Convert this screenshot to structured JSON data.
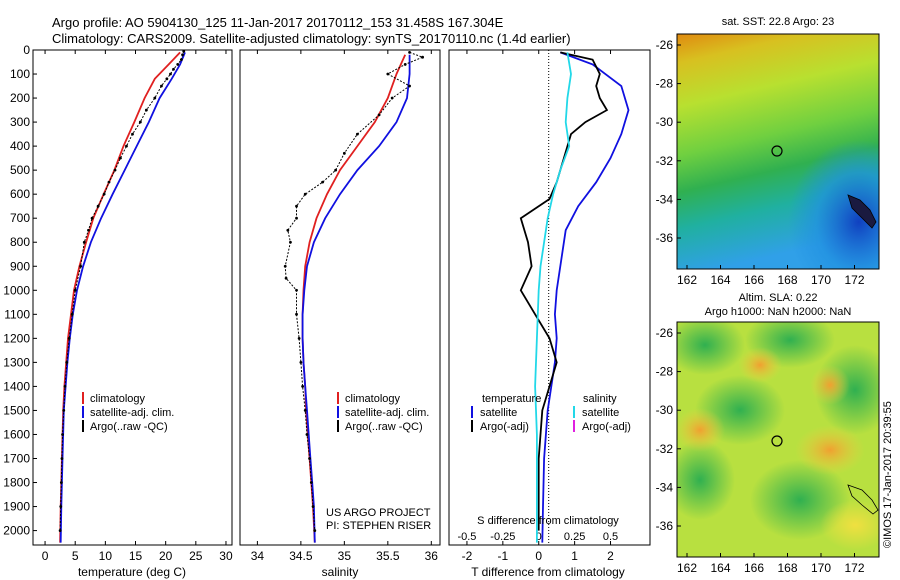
{
  "header": {
    "line1": "Argo profile: AO 5904130_125 11-Jan-2017 20170112_153 31.458S 167.304E",
    "line2": "Climatology: CARS2009. Satellite-adjusted climatology: synTS_20170110.nc (1.4d earlier)"
  },
  "colors": {
    "climatology": "#e02020",
    "satellite": "#1010e0",
    "argo": "#000000",
    "salinity_satellite": "#22d8e8",
    "salinity_argo": "#e020e0"
  },
  "chart_data": [
    {
      "id": "temperature",
      "type": "line",
      "xlabel": "temperature (deg C)",
      "xlim": [
        -2,
        31
      ],
      "ylim": [
        0,
        2060
      ],
      "y_reversed": true,
      "xticks": [
        0,
        5,
        10,
        15,
        20,
        25,
        30
      ],
      "yticks": [
        0,
        100,
        200,
        300,
        400,
        500,
        600,
        700,
        800,
        900,
        1000,
        1100,
        1200,
        1300,
        1400,
        1500,
        1600,
        1700,
        1800,
        1900,
        2000
      ],
      "legend": [
        "climatology",
        "satellite-adj. clim.",
        "Argo(..raw -QC)"
      ],
      "series": [
        {
          "name": "climatology",
          "color_key": "climatology",
          "points": [
            [
              22.4,
              10
            ],
            [
              20.5,
              60
            ],
            [
              18.2,
              120
            ],
            [
              16.5,
              200
            ],
            [
              14.8,
              300
            ],
            [
              13,
              400
            ],
            [
              11.5,
              500
            ],
            [
              9.7,
              600
            ],
            [
              8,
              700
            ],
            [
              6.8,
              800
            ],
            [
              5.7,
              900
            ],
            [
              4.8,
              1000
            ],
            [
              4.3,
              1100
            ],
            [
              3.8,
              1200
            ],
            [
              3.5,
              1300
            ],
            [
              3.2,
              1400
            ],
            [
              3,
              1500
            ],
            [
              2.8,
              1700
            ],
            [
              2.6,
              1900
            ],
            [
              2.5,
              2050
            ]
          ]
        },
        {
          "name": "satellite-adj. clim.",
          "color_key": "satellite",
          "points": [
            [
              23.2,
              10
            ],
            [
              22.4,
              60
            ],
            [
              21,
              120
            ],
            [
              19,
              200
            ],
            [
              17.2,
              300
            ],
            [
              15.2,
              400
            ],
            [
              13.2,
              500
            ],
            [
              11.2,
              600
            ],
            [
              9.3,
              700
            ],
            [
              7.6,
              800
            ],
            [
              6.3,
              900
            ],
            [
              5.3,
              1000
            ],
            [
              4.6,
              1100
            ],
            [
              4.1,
              1200
            ],
            [
              3.7,
              1300
            ],
            [
              3.4,
              1400
            ],
            [
              3.1,
              1500
            ],
            [
              2.9,
              1700
            ],
            [
              2.7,
              1900
            ],
            [
              2.6,
              2050
            ]
          ]
        },
        {
          "name": "Argo(..raw -QC)",
          "color_key": "argo",
          "style": "dots",
          "points": [
            [
              23,
              5
            ],
            [
              22.8,
              20
            ],
            [
              22.6,
              40
            ],
            [
              22,
              60
            ],
            [
              21.3,
              80
            ],
            [
              20.8,
              100
            ],
            [
              20.2,
              120
            ],
            [
              19.3,
              150
            ],
            [
              18.2,
              200
            ],
            [
              16.8,
              250
            ],
            [
              15.8,
              300
            ],
            [
              14.5,
              350
            ],
            [
              13.5,
              400
            ],
            [
              12.5,
              450
            ],
            [
              11.6,
              500
            ],
            [
              10.6,
              550
            ],
            [
              9.8,
              600
            ],
            [
              8.8,
              650
            ],
            [
              7.8,
              700
            ],
            [
              7.2,
              750
            ],
            [
              6.5,
              800
            ],
            [
              5.9,
              900
            ],
            [
              5,
              1000
            ],
            [
              4.5,
              1100
            ],
            [
              4,
              1200
            ],
            [
              3.6,
              1300
            ],
            [
              3.3,
              1400
            ],
            [
              3.1,
              1500
            ],
            [
              2.9,
              1600
            ],
            [
              2.8,
              1700
            ],
            [
              2.7,
              1800
            ],
            [
              2.6,
              1900
            ],
            [
              2.5,
              2000
            ]
          ]
        }
      ]
    },
    {
      "id": "salinity",
      "type": "line",
      "xlabel": "salinity",
      "xlim": [
        33.8,
        36.1
      ],
      "ylim": [
        0,
        2060
      ],
      "y_reversed": true,
      "xticks": [
        34,
        34.5,
        35,
        35.5,
        36
      ],
      "legend": [
        "climatology",
        "satellite-adj. clim.",
        "Argo(..raw -QC)"
      ],
      "series": [
        {
          "name": "climatology",
          "color_key": "climatology",
          "points": [
            [
              35.7,
              20
            ],
            [
              35.6,
              100
            ],
            [
              35.5,
              200
            ],
            [
              35.35,
              300
            ],
            [
              35.15,
              400
            ],
            [
              34.95,
              500
            ],
            [
              34.8,
              600
            ],
            [
              34.68,
              700
            ],
            [
              34.6,
              800
            ],
            [
              34.55,
              900
            ],
            [
              34.53,
              1000
            ],
            [
              34.52,
              1100
            ],
            [
              34.52,
              1200
            ],
            [
              34.53,
              1300
            ],
            [
              34.55,
              1400
            ],
            [
              34.56,
              1500
            ],
            [
              34.58,
              1600
            ],
            [
              34.6,
              1700
            ],
            [
              34.62,
              1800
            ],
            [
              34.64,
              1900
            ],
            [
              34.66,
              2050
            ]
          ]
        },
        {
          "name": "satellite-adj. clim.",
          "color_key": "satellite",
          "points": [
            [
              35.75,
              20
            ],
            [
              35.75,
              100
            ],
            [
              35.72,
              200
            ],
            [
              35.6,
              300
            ],
            [
              35.4,
              400
            ],
            [
              35.15,
              500
            ],
            [
              34.95,
              600
            ],
            [
              34.78,
              700
            ],
            [
              34.65,
              800
            ],
            [
              34.57,
              900
            ],
            [
              34.54,
              1000
            ],
            [
              34.52,
              1100
            ],
            [
              34.52,
              1200
            ],
            [
              34.53,
              1300
            ],
            [
              34.55,
              1400
            ],
            [
              34.57,
              1500
            ],
            [
              34.59,
              1600
            ],
            [
              34.61,
              1700
            ],
            [
              34.63,
              1800
            ],
            [
              34.65,
              1900
            ],
            [
              34.66,
              2050
            ]
          ]
        },
        {
          "name": "Argo(..raw -QC)",
          "color_key": "argo",
          "style": "dots",
          "points": [
            [
              35.75,
              10
            ],
            [
              35.9,
              30
            ],
            [
              35.7,
              60
            ],
            [
              35.5,
              100
            ],
            [
              35.75,
              150
            ],
            [
              35.55,
              200
            ],
            [
              35.4,
              270
            ],
            [
              35.15,
              350
            ],
            [
              35.0,
              430
            ],
            [
              34.9,
              500
            ],
            [
              34.75,
              550
            ],
            [
              34.55,
              600
            ],
            [
              34.45,
              650
            ],
            [
              34.45,
              700
            ],
            [
              34.35,
              750
            ],
            [
              34.38,
              800
            ],
            [
              34.32,
              900
            ],
            [
              34.33,
              950
            ],
            [
              34.45,
              1000
            ],
            [
              34.45,
              1100
            ],
            [
              34.48,
              1200
            ],
            [
              34.5,
              1300
            ],
            [
              34.52,
              1400
            ],
            [
              34.55,
              1500
            ],
            [
              34.57,
              1600
            ],
            [
              34.6,
              1700
            ],
            [
              34.62,
              1800
            ],
            [
              34.64,
              1900
            ],
            [
              34.66,
              2000
            ]
          ]
        }
      ]
    },
    {
      "id": "difference",
      "type": "line",
      "xlabel_bottom": "T difference from climatology",
      "xlabel_top": "S difference from climatology",
      "xlim": [
        -2.5,
        3.1
      ],
      "ylim": [
        0,
        2060
      ],
      "y_reversed": true,
      "xticks": [
        -2,
        -1,
        0,
        1,
        2
      ],
      "xticks_top": [
        {
          "label": "-0.5",
          "x": -2
        },
        {
          "label": "-0.25",
          "x": -1
        },
        {
          "label": "0",
          "x": 0
        },
        {
          "label": "0.25",
          "x": 1
        },
        {
          "label": "0.5",
          "x": 2
        }
      ],
      "legend_temperature": {
        "title": "temperature",
        "items": [
          "satellite",
          "Argo(-adj)"
        ]
      },
      "legend_salinity": {
        "title": "salinity",
        "items": [
          "satellite",
          "Argo(-adj)"
        ]
      },
      "series": [
        {
          "name": "T satellite",
          "color_key": "satellite",
          "points": [
            [
              0.6,
              10
            ],
            [
              1.5,
              60
            ],
            [
              2.3,
              150
            ],
            [
              2.5,
              250
            ],
            [
              2.3,
              350
            ],
            [
              2.0,
              450
            ],
            [
              1.6,
              550
            ],
            [
              1.1,
              650
            ],
            [
              0.75,
              750
            ],
            [
              0.6,
              900
            ],
            [
              0.5,
              1000
            ],
            [
              0.45,
              1100
            ],
            [
              0.5,
              1200
            ],
            [
              0.45,
              1300
            ],
            [
              0.35,
              1400
            ],
            [
              0.25,
              1500
            ],
            [
              0.2,
              1600
            ],
            [
              0.15,
              1700
            ],
            [
              0.12,
              1900
            ],
            [
              0.1,
              2050
            ]
          ]
        },
        {
          "name": "T Argo",
          "color_key": "argo",
          "points": [
            [
              0.6,
              10
            ],
            [
              1.5,
              40
            ],
            [
              1.7,
              100
            ],
            [
              1.6,
              150
            ],
            [
              1.7,
              200
            ],
            [
              1.9,
              250
            ],
            [
              1.3,
              300
            ],
            [
              0.9,
              350
            ],
            [
              0.7,
              450
            ],
            [
              0.5,
              550
            ],
            [
              0.3,
              620
            ],
            [
              -0.5,
              700
            ],
            [
              -0.3,
              800
            ],
            [
              -0.2,
              900
            ],
            [
              -0.5,
              1000
            ],
            [
              -0.1,
              1100
            ],
            [
              0.3,
              1200
            ],
            [
              0.5,
              1300
            ],
            [
              0.3,
              1400
            ],
            [
              0.1,
              1500
            ],
            [
              0.0,
              1700
            ],
            [
              0.0,
              2000
            ]
          ]
        },
        {
          "name": "S satellite",
          "color_key": "salinity_satellite",
          "points": [
            [
              0.8,
              10
            ],
            [
              0.9,
              100
            ],
            [
              0.8,
              200
            ],
            [
              0.75,
              300
            ],
            [
              0.85,
              400
            ],
            [
              0.6,
              500
            ],
            [
              0.4,
              600
            ],
            [
              0.25,
              700
            ],
            [
              0.15,
              800
            ],
            [
              0.05,
              900
            ],
            [
              0.0,
              1000
            ],
            [
              -0.05,
              1200
            ],
            [
              -0.1,
              1400
            ],
            [
              -0.05,
              1600
            ],
            [
              -0.05,
              1800
            ],
            [
              -0.05,
              2050
            ]
          ]
        }
      ]
    }
  ],
  "maps": [
    {
      "id": "sst-map",
      "title": "sat. SST: 22.8 Argo: 23",
      "xticks": [
        "162",
        "164",
        "166",
        "168",
        "170",
        "172"
      ],
      "yticks": [
        "-26",
        "-28",
        "-30",
        "-32",
        "-34",
        "-36"
      ]
    },
    {
      "id": "sla-map",
      "title_line1": "Altim. SLA: 0.22",
      "title_line2": "Argo h1000: NaN h2000: NaN",
      "xticks": [
        "162",
        "164",
        "166",
        "168",
        "170",
        "172"
      ],
      "yticks": [
        "-26",
        "-28",
        "-30",
        "-32",
        "-34",
        "-36"
      ]
    }
  ],
  "credits": {
    "project": "US ARGO PROJECT",
    "pi": "PI: STEPHEN RISER",
    "stamp": "©IMOS 17-Jan-2017 20:39:55"
  }
}
